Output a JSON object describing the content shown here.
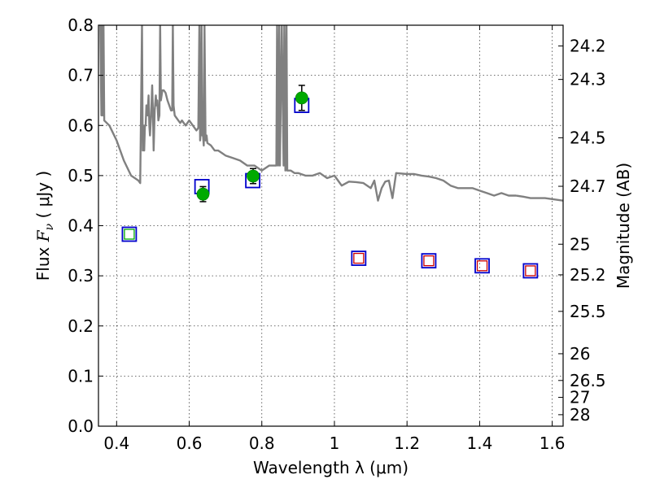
{
  "chart_data": {
    "type": "scatter",
    "xlabel": "Wavelength  λ (μm)",
    "ylabel_prefix": "Flux  ",
    "ylabel_symbol": "F",
    "ylabel_sub": "ν",
    "ylabel_suffix": "  ( μJy )",
    "y2label": "Magnitude (AB)",
    "xlim": [
      0.35,
      1.63
    ],
    "ylim": [
      0.0,
      0.8
    ],
    "grid": true,
    "x_ticks": [
      {
        "value": 0.4,
        "label": "0.4"
      },
      {
        "value": 0.6,
        "label": "0.6"
      },
      {
        "value": 0.8,
        "label": "0.8"
      },
      {
        "value": 1.0,
        "label": "1"
      },
      {
        "value": 1.2,
        "label": "1.2"
      },
      {
        "value": 1.4,
        "label": "1.4"
      },
      {
        "value": 1.6,
        "label": "1.6"
      }
    ],
    "y_ticks": [
      {
        "value": 0.0,
        "label": "0.0"
      },
      {
        "value": 0.1,
        "label": "0.1"
      },
      {
        "value": 0.2,
        "label": "0.2"
      },
      {
        "value": 0.3,
        "label": "0.3"
      },
      {
        "value": 0.4,
        "label": "0.4"
      },
      {
        "value": 0.5,
        "label": "0.5"
      },
      {
        "value": 0.6,
        "label": "0.6"
      },
      {
        "value": 0.7,
        "label": "0.7"
      },
      {
        "value": 0.8,
        "label": "0.8"
      }
    ],
    "mag_ticks": [
      {
        "value": 24.2,
        "label": "24.2"
      },
      {
        "value": 24.3,
        "label": "24.3"
      },
      {
        "value": 24.5,
        "label": "24.5"
      },
      {
        "value": 24.7,
        "label": "24.7"
      },
      {
        "value": 25.0,
        "label": "25"
      },
      {
        "value": 25.2,
        "label": "25.2"
      },
      {
        "value": 25.5,
        "label": "25.5"
      },
      {
        "value": 26.0,
        "label": "26"
      },
      {
        "value": 26.5,
        "label": "26.5"
      },
      {
        "value": 27.0,
        "label": "27"
      },
      {
        "value": 28.0,
        "label": "28"
      }
    ],
    "series": [
      {
        "kind": "line",
        "color": "#808080",
        "x": [
          0.355,
          0.358,
          0.36,
          0.362,
          0.364,
          0.366,
          0.38,
          0.4,
          0.42,
          0.44,
          0.46,
          0.465,
          0.47,
          0.472,
          0.474,
          0.476,
          0.478,
          0.48,
          0.482,
          0.485,
          0.488,
          0.49,
          0.492,
          0.495,
          0.498,
          0.5,
          0.502,
          0.505,
          0.508,
          0.51,
          0.512,
          0.515,
          0.518,
          0.52,
          0.522,
          0.524,
          0.526,
          0.53,
          0.535,
          0.54,
          0.545,
          0.55,
          0.553,
          0.555,
          0.557,
          0.56,
          0.565,
          0.57,
          0.575,
          0.58,
          0.585,
          0.59,
          0.6,
          0.61,
          0.62,
          0.625,
          0.628,
          0.63,
          0.632,
          0.634,
          0.636,
          0.638,
          0.64,
          0.642,
          0.645,
          0.648,
          0.65,
          0.66,
          0.67,
          0.68,
          0.69,
          0.7,
          0.72,
          0.74,
          0.76,
          0.78,
          0.8,
          0.82,
          0.84,
          0.842,
          0.845,
          0.848,
          0.85,
          0.855,
          0.86,
          0.862,
          0.865,
          0.868,
          0.87,
          0.88,
          0.89,
          0.9,
          0.92,
          0.94,
          0.96,
          0.98,
          1.0,
          1.01,
          1.02,
          1.04,
          1.06,
          1.08,
          1.1,
          1.11,
          1.12,
          1.13,
          1.14,
          1.15,
          1.16,
          1.17,
          1.2,
          1.22,
          1.24,
          1.26,
          1.28,
          1.3,
          1.32,
          1.34,
          1.36,
          1.38,
          1.4,
          1.42,
          1.44,
          1.46,
          1.48,
          1.5,
          1.52,
          1.54,
          1.56,
          1.58,
          1.6,
          1.63
        ],
        "y": [
          0.8,
          0.62,
          0.8,
          0.62,
          0.8,
          0.61,
          0.6,
          0.57,
          0.53,
          0.5,
          0.49,
          0.485,
          0.8,
          0.55,
          0.6,
          0.55,
          0.6,
          0.6,
          0.64,
          0.62,
          0.66,
          0.6,
          0.58,
          0.62,
          0.68,
          0.63,
          0.55,
          0.63,
          0.66,
          0.64,
          0.65,
          0.61,
          0.62,
          0.8,
          0.65,
          0.66,
          0.67,
          0.67,
          0.665,
          0.65,
          0.64,
          0.63,
          0.63,
          0.8,
          0.64,
          0.62,
          0.615,
          0.61,
          0.605,
          0.61,
          0.605,
          0.6,
          0.61,
          0.6,
          0.59,
          0.595,
          0.8,
          0.57,
          0.59,
          0.8,
          0.58,
          0.58,
          0.56,
          0.8,
          0.57,
          0.58,
          0.565,
          0.56,
          0.55,
          0.55,
          0.545,
          0.54,
          0.535,
          0.53,
          0.52,
          0.52,
          0.51,
          0.52,
          0.52,
          0.8,
          0.52,
          0.8,
          0.52,
          0.8,
          0.52,
          0.8,
          0.51,
          0.8,
          0.51,
          0.51,
          0.505,
          0.505,
          0.5,
          0.5,
          0.505,
          0.495,
          0.5,
          0.49,
          0.48,
          0.488,
          0.487,
          0.485,
          0.475,
          0.49,
          0.45,
          0.475,
          0.488,
          0.49,
          0.455,
          0.505,
          0.503,
          0.503,
          0.5,
          0.498,
          0.495,
          0.49,
          0.48,
          0.475,
          0.475,
          0.475,
          0.47,
          0.465,
          0.46,
          0.465,
          0.46,
          0.46,
          0.458,
          0.455,
          0.455,
          0.455,
          0.453,
          0.45
        ]
      },
      {
        "kind": "square",
        "edge": "#0000cc",
        "face": "none",
        "x": [
          0.435,
          0.635,
          0.775,
          0.91,
          1.067,
          1.26,
          1.407,
          1.54
        ],
        "y": [
          0.383,
          0.478,
          0.49,
          0.64,
          0.335,
          0.33,
          0.32,
          0.31
        ]
      },
      {
        "kind": "square-inner",
        "edge": "#00aa00",
        "face": "none",
        "x": [
          0.435
        ],
        "y": [
          0.383
        ]
      },
      {
        "kind": "square-inner",
        "edge": "#cc0000",
        "face": "none",
        "x": [
          1.067,
          1.26,
          1.407,
          1.54
        ],
        "y": [
          0.335,
          0.33,
          0.32,
          0.31
        ]
      },
      {
        "kind": "errorbar",
        "color": "#00aa00",
        "x": [
          0.638,
          0.776,
          0.91
        ],
        "y": [
          0.463,
          0.499,
          0.655
        ],
        "err": [
          0.015,
          0.015,
          0.025
        ]
      }
    ]
  }
}
